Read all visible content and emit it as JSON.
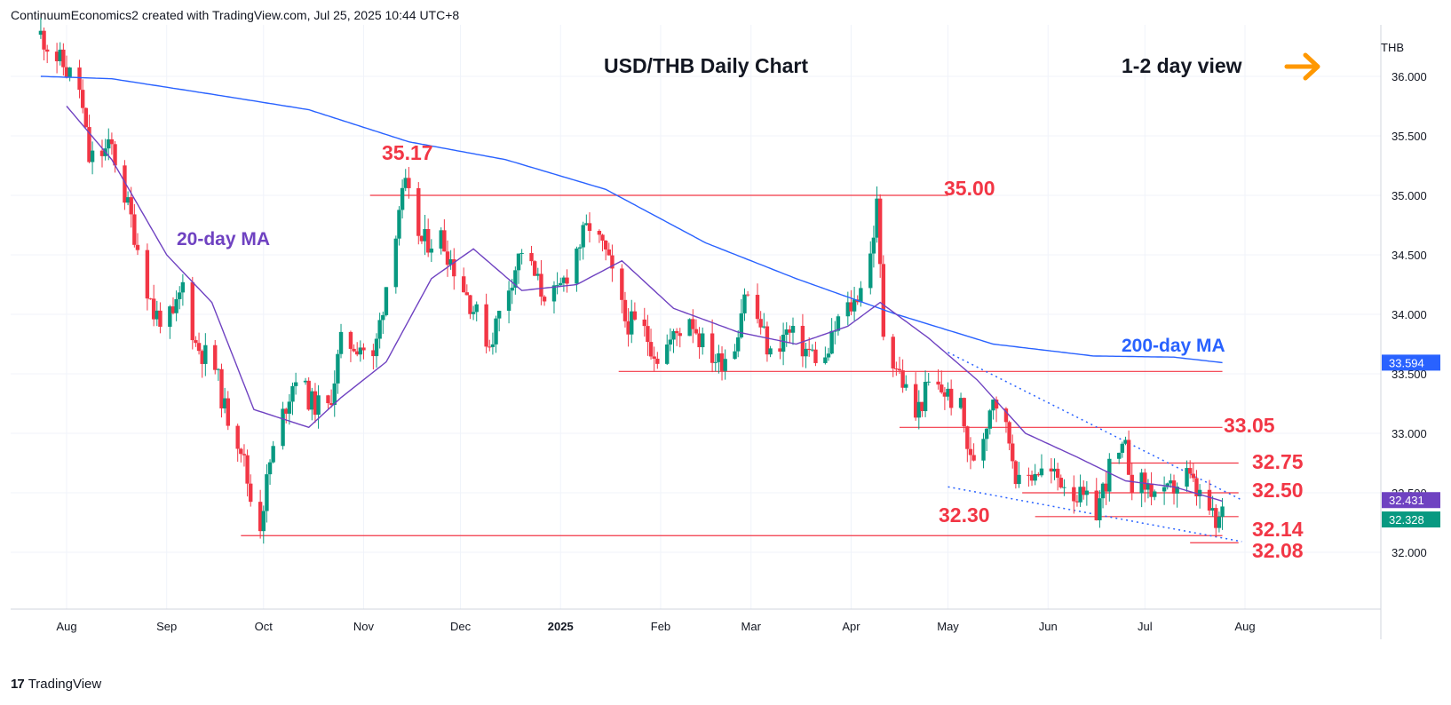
{
  "header": {
    "attribution": "ContinuumEconomics2 created with TradingView.com, Jul 25, 2025 10:44 UTC+8"
  },
  "footer": {
    "brand": "TradingView",
    "logo_text": "17"
  },
  "colors": {
    "up": "#089981",
    "down": "#f23645",
    "ma20": "#6f42c1",
    "ma200": "#2962ff",
    "annotation": "#f23645",
    "arrow": "#ff9800",
    "trendline": "#2962ff"
  },
  "chart_data": {
    "type": "candlestick",
    "title": "USD/THB Daily Chart",
    "subtitle": "1-2 day view",
    "currency": "THB",
    "x_ticks": [
      "Aug",
      "Sep",
      "Oct",
      "Nov",
      "Dec",
      "2025",
      "Feb",
      "Mar",
      "Apr",
      "May",
      "Jun",
      "Jul",
      "Aug"
    ],
    "y_ticks": [
      "36.000",
      "35.500",
      "35.000",
      "34.500",
      "34.000",
      "33.500",
      "33.000",
      "32.500",
      "32.000"
    ],
    "ylim": [
      31.5,
      36.4
    ],
    "grid": true,
    "levels": [
      35.17,
      35.0,
      33.05,
      32.75,
      32.5,
      32.3,
      32.14,
      32.08
    ],
    "level_labels": [
      "35.17",
      "35.00",
      "33.05",
      "32.75",
      "32.50",
      "32.30",
      "32.14",
      "32.08"
    ],
    "ma_labels": [
      "20-day MA",
      "200-day MA"
    ],
    "price_tags": [
      {
        "label": "33.594",
        "value": 33.594,
        "color": "#2962ff"
      },
      {
        "label": "32.431",
        "value": 32.431,
        "color": "#6f42c1"
      },
      {
        "label": "32.328",
        "value": 32.328,
        "color": "#089981"
      }
    ],
    "close_path": [
      [
        "2024-07-24",
        36.35
      ],
      [
        "2024-08-05",
        35.9
      ],
      [
        "2024-08-08",
        35.3
      ],
      [
        "2024-08-15",
        35.4
      ],
      [
        "2024-08-21",
        34.8
      ],
      [
        "2024-08-28",
        34.0
      ],
      [
        "2024-09-03",
        33.95
      ],
      [
        "2024-09-06",
        34.25
      ],
      [
        "2024-09-10",
        33.75
      ],
      [
        "2024-09-16",
        33.55
      ],
      [
        "2024-09-19",
        33.2
      ],
      [
        "2024-09-24",
        32.9
      ],
      [
        "2024-09-27",
        32.45
      ],
      [
        "2024-09-30",
        32.25
      ],
      [
        "2024-10-03",
        32.75
      ],
      [
        "2024-10-08",
        33.25
      ],
      [
        "2024-10-11",
        33.5
      ],
      [
        "2024-10-16",
        33.25
      ],
      [
        "2024-10-21",
        33.2
      ],
      [
        "2024-10-25",
        33.75
      ],
      [
        "2024-10-31",
        33.75
      ],
      [
        "2024-11-04",
        33.6
      ],
      [
        "2024-11-08",
        34.25
      ],
      [
        "2024-11-12",
        34.9
      ],
      [
        "2024-11-14",
        35.05
      ],
      [
        "2024-11-19",
        34.6
      ],
      [
        "2024-11-25",
        34.65
      ],
      [
        "2024-11-29",
        34.4
      ],
      [
        "2024-12-05",
        34.05
      ],
      [
        "2024-12-10",
        33.75
      ],
      [
        "2024-12-16",
        34.25
      ],
      [
        "2024-12-20",
        34.55
      ],
      [
        "2024-12-26",
        34.2
      ],
      [
        "2024-12-31",
        34.15
      ],
      [
        "2025-01-06",
        34.55
      ],
      [
        "2025-01-10",
        34.75
      ],
      [
        "2025-01-15",
        34.5
      ],
      [
        "2025-01-21",
        33.95
      ],
      [
        "2025-01-27",
        33.85
      ],
      [
        "2025-01-31",
        33.65
      ],
      [
        "2025-02-05",
        33.8
      ],
      [
        "2025-02-10",
        34.0
      ],
      [
        "2025-02-14",
        33.75
      ],
      [
        "2025-02-19",
        33.6
      ],
      [
        "2025-02-24",
        33.75
      ],
      [
        "2025-02-27",
        34.2
      ],
      [
        "2025-03-04",
        33.9
      ],
      [
        "2025-03-07",
        33.65
      ],
      [
        "2025-03-12",
        33.85
      ],
      [
        "2025-03-18",
        33.7
      ],
      [
        "2025-03-24",
        33.6
      ],
      [
        "2025-03-28",
        33.95
      ],
      [
        "2025-04-02",
        34.1
      ],
      [
        "2025-04-07",
        34.5
      ],
      [
        "2025-04-09",
        34.9
      ],
      [
        "2025-04-11",
        33.85
      ],
      [
        "2025-04-16",
        33.5
      ],
      [
        "2025-04-21",
        33.15
      ],
      [
        "2025-04-25",
        33.4
      ],
      [
        "2025-04-30",
        33.35
      ],
      [
        "2025-05-05",
        33.2
      ],
      [
        "2025-05-08",
        32.75
      ],
      [
        "2025-05-12",
        33.0
      ],
      [
        "2025-05-15",
        33.35
      ],
      [
        "2025-05-20",
        32.95
      ],
      [
        "2025-05-23",
        32.55
      ],
      [
        "2025-05-28",
        32.7
      ],
      [
        "2025-06-02",
        32.65
      ],
      [
        "2025-06-06",
        32.6
      ],
      [
        "2025-06-11",
        32.45
      ],
      [
        "2025-06-16",
        32.35
      ],
      [
        "2025-06-20",
        32.7
      ],
      [
        "2025-06-25",
        32.85
      ],
      [
        "2025-06-27",
        32.6
      ],
      [
        "2025-07-02",
        32.55
      ],
      [
        "2025-07-07",
        32.45
      ],
      [
        "2025-07-10",
        32.55
      ],
      [
        "2025-07-14",
        32.65
      ],
      [
        "2025-07-17",
        32.5
      ],
      [
        "2025-07-21",
        32.35
      ],
      [
        "2025-07-23",
        32.2
      ],
      [
        "2025-07-25",
        32.33
      ]
    ],
    "ma20_path": [
      [
        "2024-08-01",
        35.75
      ],
      [
        "2024-08-15",
        35.3
      ],
      [
        "2024-09-01",
        34.5
      ],
      [
        "2024-09-15",
        34.1
      ],
      [
        "2024-09-28",
        33.2
      ],
      [
        "2024-10-15",
        33.05
      ],
      [
        "2024-10-25",
        33.3
      ],
      [
        "2024-11-08",
        33.6
      ],
      [
        "2024-11-22",
        34.3
      ],
      [
        "2024-12-05",
        34.55
      ],
      [
        "2024-12-20",
        34.2
      ],
      [
        "2025-01-06",
        34.25
      ],
      [
        "2025-01-20",
        34.45
      ],
      [
        "2025-02-05",
        34.05
      ],
      [
        "2025-02-25",
        33.85
      ],
      [
        "2025-03-15",
        33.75
      ],
      [
        "2025-03-31",
        33.9
      ],
      [
        "2025-04-10",
        34.1
      ],
      [
        "2025-04-25",
        33.8
      ],
      [
        "2025-05-10",
        33.45
      ],
      [
        "2025-05-25",
        33.0
      ],
      [
        "2025-06-10",
        32.8
      ],
      [
        "2025-06-25",
        32.6
      ],
      [
        "2025-07-10",
        32.55
      ],
      [
        "2025-07-25",
        32.43
      ]
    ],
    "ma200_path": [
      [
        "2024-07-24",
        36.0
      ],
      [
        "2024-08-15",
        35.98
      ],
      [
        "2024-09-15",
        35.85
      ],
      [
        "2024-10-15",
        35.72
      ],
      [
        "2024-11-15",
        35.45
      ],
      [
        "2024-12-15",
        35.3
      ],
      [
        "2025-01-15",
        35.05
      ],
      [
        "2025-02-15",
        34.6
      ],
      [
        "2025-03-15",
        34.3
      ],
      [
        "2025-04-15",
        34.0
      ],
      [
        "2025-05-15",
        33.75
      ],
      [
        "2025-06-15",
        33.65
      ],
      [
        "2025-07-10",
        33.64
      ],
      [
        "2025-07-25",
        33.594
      ]
    ]
  }
}
